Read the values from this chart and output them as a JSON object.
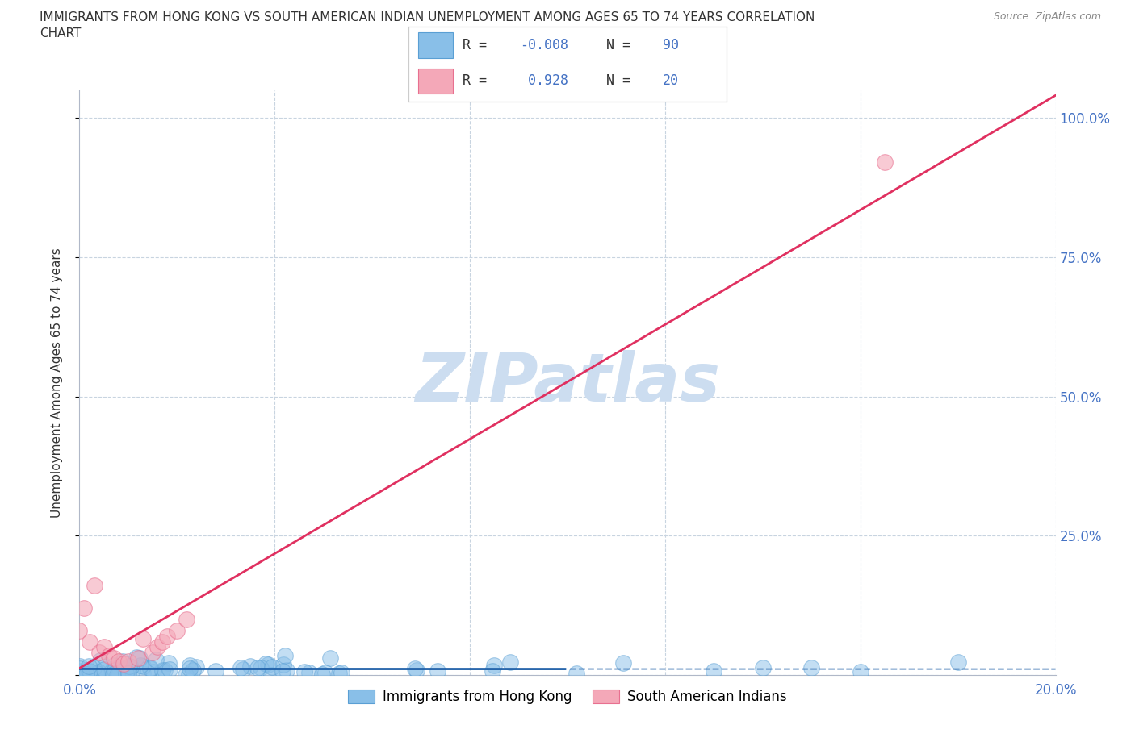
{
  "title_line1": "IMMIGRANTS FROM HONG KONG VS SOUTH AMERICAN INDIAN UNEMPLOYMENT AMONG AGES 65 TO 74 YEARS CORRELATION",
  "title_line2": "CHART",
  "source": "Source: ZipAtlas.com",
  "ylabel": "Unemployment Among Ages 65 to 74 years",
  "x_min": 0.0,
  "x_max": 0.2,
  "y_min": 0.0,
  "y_max": 1.05,
  "x_ticks": [
    0.0,
    0.04,
    0.08,
    0.12,
    0.16,
    0.2
  ],
  "y_ticks": [
    0.0,
    0.25,
    0.5,
    0.75,
    1.0
  ],
  "y_tick_labels": [
    "",
    "25.0%",
    "50.0%",
    "75.0%",
    "100.0%"
  ],
  "hk_color": "#89bfe8",
  "hk_edge_color": "#5a9fd4",
  "sa_color": "#f4a8b8",
  "sa_edge_color": "#e87090",
  "hk_line_color": "#1e5fa8",
  "sa_line_color": "#e03060",
  "hk_R": -0.008,
  "hk_N": 90,
  "sa_R": 0.928,
  "sa_N": 20,
  "watermark": "ZIPatlas",
  "watermark_color": "#ccddf0",
  "grid_color": "#c8d4e0",
  "tick_color": "#4472c4",
  "legend_label_hk": "Immigrants from Hong Kong",
  "legend_label_sa": "South American Indians"
}
